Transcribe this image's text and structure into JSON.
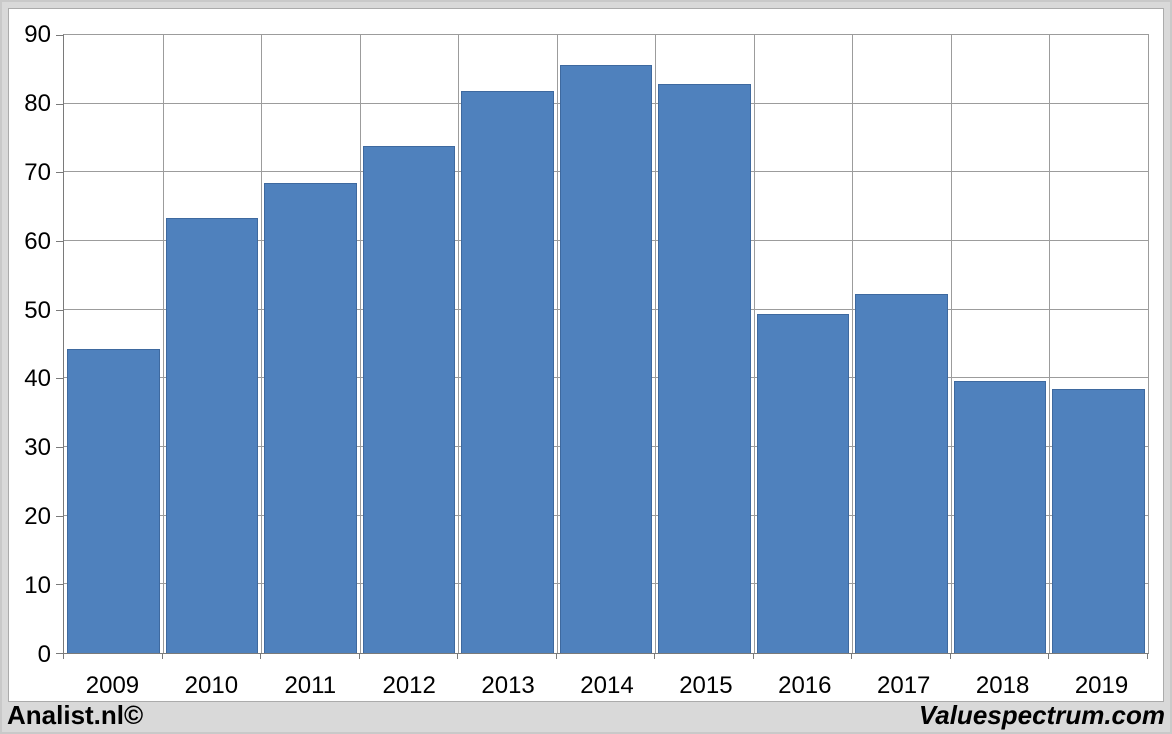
{
  "chart_data": {
    "type": "bar",
    "title": "",
    "xlabel": "",
    "ylabel": "",
    "categories": [
      "2009",
      "2010",
      "2011",
      "2012",
      "2013",
      "2014",
      "2015",
      "2016",
      "2017",
      "2018",
      "2019"
    ],
    "values": [
      44.3,
      63.3,
      68.5,
      73.9,
      81.8,
      85.6,
      82.8,
      49.3,
      52.3,
      39.6,
      38.5
    ],
    "ylim": [
      0,
      90
    ],
    "ytick_step": 10,
    "ytick_labels": [
      "0",
      "10",
      "20",
      "30",
      "40",
      "50",
      "60",
      "70",
      "80",
      "90"
    ],
    "grid": true,
    "legend": "none",
    "colors": {
      "bar": "#4f81bd",
      "bar_border": "#3e699f",
      "gridline": "#9c9c9c",
      "axis": "#7a7a7a",
      "panel_background": "#ffffff",
      "frame_background": "#d9d9d9",
      "text": "#000000"
    }
  },
  "footer": {
    "left": "Analist.nl©",
    "right": "Valuespectrum.com"
  }
}
